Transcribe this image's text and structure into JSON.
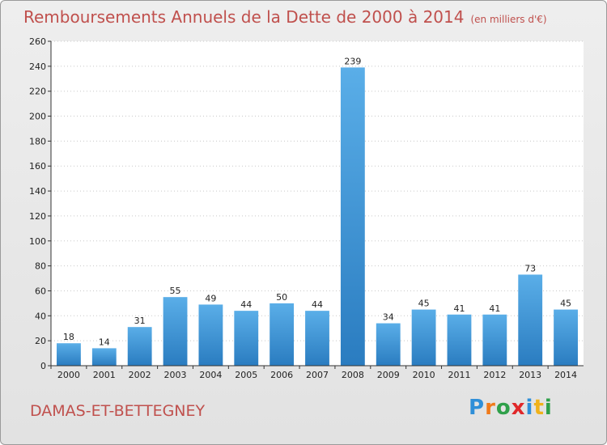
{
  "header": {
    "title": "Remboursements Annuels de la Dette de 2000 à 2014",
    "unit": "(en milliers d'€)"
  },
  "footer": {
    "commune": "DAMAS-ET-BETTEGNEY",
    "logo_letters": [
      "P",
      "r",
      "o",
      "x",
      "i",
      "t",
      "i"
    ],
    "logo_colors": [
      "#2f8fd8",
      "#f07a1a",
      "#2fa04a",
      "#e0282a",
      "#2f8fd8",
      "#f0b21a",
      "#2fa04a"
    ]
  },
  "chart_data": {
    "type": "bar",
    "categories": [
      "2000",
      "2001",
      "2002",
      "2003",
      "2004",
      "2005",
      "2006",
      "2007",
      "2008",
      "2009",
      "2010",
      "2011",
      "2012",
      "2013",
      "2014"
    ],
    "values": [
      18,
      14,
      31,
      55,
      49,
      44,
      50,
      44,
      239,
      34,
      45,
      41,
      41,
      73,
      45
    ],
    "title": "Remboursements Annuels de la Dette de 2000 à 2014",
    "xlabel": "",
    "ylabel": "",
    "ylim": [
      0,
      260
    ],
    "yticks": [
      0,
      20,
      40,
      60,
      80,
      100,
      120,
      140,
      160,
      180,
      200,
      220,
      240,
      260
    ],
    "grid": true,
    "bar_color_top": "#5aaee8",
    "bar_color_bottom": "#2a7cc0"
  }
}
